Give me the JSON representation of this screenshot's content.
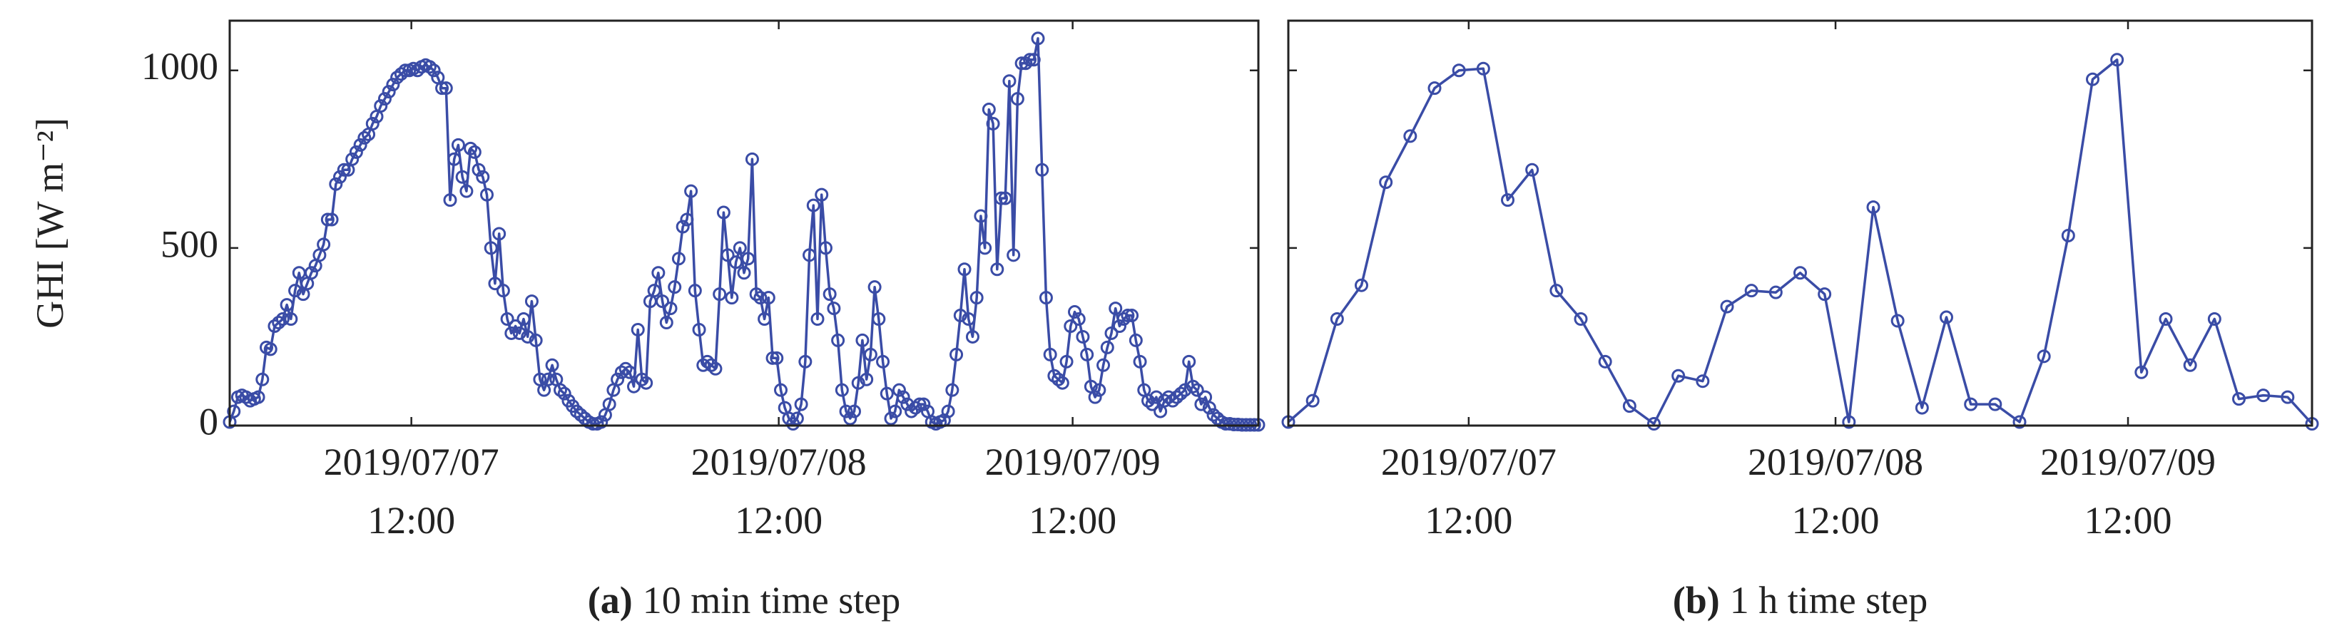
{
  "chart_data": [
    {
      "type": "line",
      "caption_label": "(a)",
      "caption": "10 min time step",
      "ylabel": "GHI [W m⁻²]",
      "xlim": [
        0,
        252
      ],
      "xticks": [
        {
          "value": 44.5,
          "label": "2019/07/07\n12:00"
        },
        {
          "value": 134.5,
          "label": "2019/07/08\n12:00"
        },
        {
          "value": 206.5,
          "label": "2019/07/09\n12:00"
        }
      ],
      "ylim": [
        0,
        1140
      ],
      "yticks": [
        0,
        500,
        1000
      ],
      "ytick_labels": true,
      "markers": true,
      "series": [
        {
          "name": "GHI",
          "color": "#3a4ca6",
          "values": [
            10,
            40,
            80,
            85,
            80,
            70,
            75,
            80,
            130,
            220,
            215,
            280,
            290,
            300,
            340,
            300,
            380,
            430,
            370,
            400,
            430,
            450,
            480,
            510,
            580,
            580,
            680,
            700,
            720,
            720,
            750,
            770,
            790,
            810,
            820,
            850,
            870,
            900,
            920,
            940,
            960,
            980,
            990,
            1000,
            1000,
            1005,
            1000,
            1010,
            1015,
            1010,
            1000,
            980,
            950,
            950,
            635,
            750,
            790,
            700,
            660,
            780,
            770,
            720,
            700,
            650,
            500,
            400,
            540,
            380,
            300,
            260,
            280,
            260,
            300,
            250,
            350,
            240,
            130,
            100,
            130,
            170,
            130,
            100,
            90,
            70,
            55,
            40,
            30,
            20,
            10,
            5,
            5,
            10,
            30,
            60,
            100,
            130,
            150,
            160,
            150,
            110,
            270,
            130,
            120,
            350,
            380,
            430,
            350,
            290,
            330,
            390,
            470,
            560,
            580,
            660,
            380,
            270,
            170,
            180,
            170,
            160,
            370,
            600,
            480,
            360,
            460,
            500,
            430,
            470,
            750,
            370,
            360,
            300,
            360,
            190,
            190,
            100,
            50,
            20,
            5,
            20,
            60,
            180,
            480,
            620,
            300,
            650,
            500,
            370,
            330,
            240,
            100,
            40,
            20,
            40,
            120,
            240,
            130,
            200,
            390,
            300,
            180,
            90,
            20,
            40,
            100,
            80,
            60,
            40,
            50,
            60,
            60,
            40,
            10,
            5,
            10,
            15,
            40,
            100,
            200,
            310,
            440,
            300,
            250,
            360,
            590,
            500,
            890,
            850,
            440,
            640,
            640,
            970,
            480,
            920,
            1020,
            1020,
            1030,
            1030,
            1090,
            720,
            360,
            200,
            140,
            130,
            120,
            180,
            280,
            320,
            300,
            250,
            200,
            110,
            80,
            100,
            170,
            220,
            260,
            330,
            280,
            300,
            310,
            310,
            240,
            180,
            100,
            70,
            60,
            80,
            40,
            70,
            80,
            70,
            80,
            90,
            100,
            180,
            110,
            100,
            60,
            80,
            50,
            30,
            20,
            10,
            5,
            5,
            3,
            3,
            2,
            2,
            2,
            2,
            2
          ]
        }
      ]
    },
    {
      "type": "line",
      "caption_label": "(b)",
      "caption": "1 h time step",
      "xlim": [
        0,
        42
      ],
      "xticks": [
        {
          "value": 7.4,
          "label": "2019/07/07\n12:00"
        },
        {
          "value": 22.45,
          "label": "2019/07/08\n12:00"
        },
        {
          "value": 34.45,
          "label": "2019/07/09\n12:00"
        }
      ],
      "ylim": [
        0,
        1140
      ],
      "yticks": [
        0,
        500,
        1000
      ],
      "ytick_labels": false,
      "markers": true,
      "series": [
        {
          "name": "GHI",
          "color": "#3a4ca6",
          "values": [
            10,
            70,
            300,
            395,
            685,
            815,
            950,
            1000,
            1005,
            635,
            720,
            380,
            300,
            180,
            55,
            5,
            140,
            125,
            335,
            380,
            375,
            430,
            370,
            10,
            615,
            295,
            50,
            305,
            60,
            60,
            10,
            195,
            535,
            975,
            1030,
            150,
            300,
            170,
            300,
            75,
            85,
            80,
            5
          ]
        }
      ]
    }
  ]
}
